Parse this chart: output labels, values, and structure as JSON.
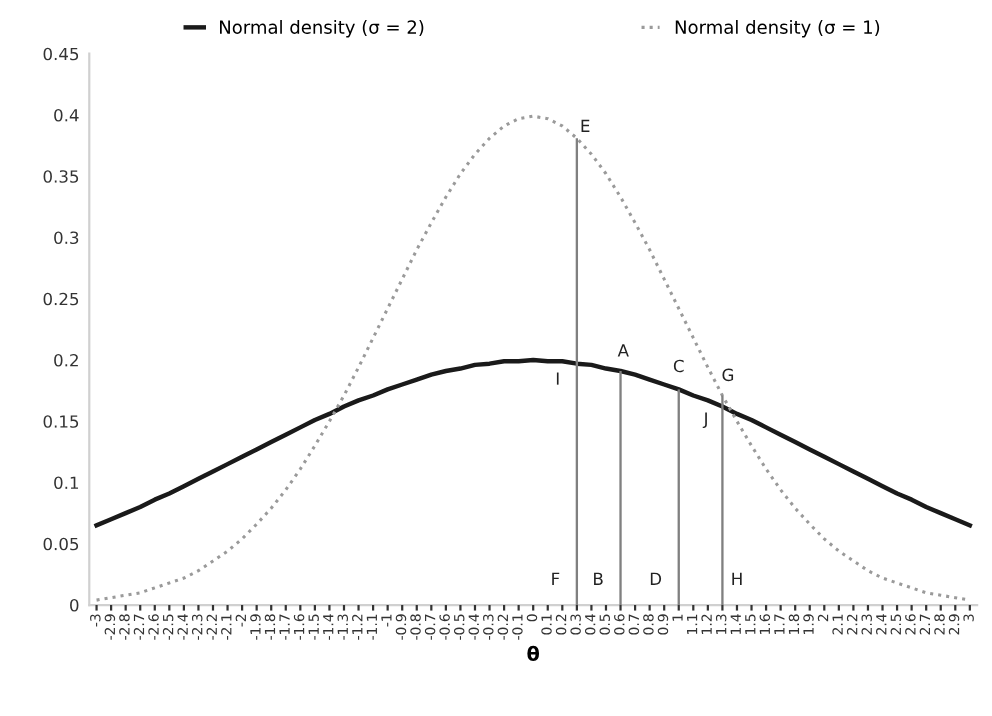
{
  "chart_data": {
    "type": "line",
    "xlabel": "θ",
    "legend": "top",
    "categories": [
      "-3",
      "-2.9",
      "-2.8",
      "-2.7",
      "-2.6",
      "-2.5",
      "-2.4",
      "-2.3",
      "-2.2",
      "-2.1",
      "-2",
      "-1.9",
      "-1.8",
      "-1.7",
      "-1.6",
      "-1.5",
      "-1.4",
      "-1.3",
      "-1.2",
      "-1.1",
      "-1",
      "-0.9",
      "-0.8",
      "-0.7",
      "-0.6",
      "-0.5",
      "-0.4",
      "-0.3",
      "-0.2",
      "-0.1",
      "0",
      "0.1",
      "0.2",
      "0.3",
      "0.4",
      "0.5",
      "0.6",
      "0.7",
      "0.8",
      "0.9",
      "1",
      "1.1",
      "1.2",
      "1.3",
      "1.4",
      "1.5",
      "1.6",
      "1.7",
      "1.8",
      "1.9",
      "2",
      "2.1",
      "2.2",
      "2.3",
      "2.4",
      "2.5",
      "2.6",
      "2.7",
      "2.8",
      "2.9",
      "3"
    ],
    "series": [
      {
        "name": "Normal density (σ = 2)",
        "color": "#1a1a1a",
        "line_style": "solid",
        "values": [
          0.065,
          0.07,
          0.075,
          0.08,
          0.086,
          0.091,
          0.097,
          0.103,
          0.109,
          0.115,
          0.121,
          0.127,
          0.133,
          0.139,
          0.145,
          0.151,
          0.156,
          0.162,
          0.167,
          0.171,
          0.176,
          0.18,
          0.184,
          0.188,
          0.191,
          0.193,
          0.196,
          0.197,
          0.199,
          0.199,
          0.2,
          0.199,
          0.199,
          0.197,
          0.196,
          0.193,
          0.191,
          0.188,
          0.184,
          0.18,
          0.176,
          0.171,
          0.167,
          0.162,
          0.156,
          0.151,
          0.145,
          0.139,
          0.133,
          0.127,
          0.121,
          0.115,
          0.109,
          0.103,
          0.097,
          0.091,
          0.086,
          0.08,
          0.075,
          0.07,
          0.065
        ]
      },
      {
        "name": "Normal density (σ = 1)",
        "color": "#9a9a9a",
        "line_style": "dotted",
        "values": [
          0.004,
          0.006,
          0.008,
          0.01,
          0.014,
          0.018,
          0.022,
          0.028,
          0.036,
          0.044,
          0.054,
          0.066,
          0.079,
          0.094,
          0.111,
          0.13,
          0.15,
          0.171,
          0.194,
          0.218,
          0.242,
          0.266,
          0.29,
          0.312,
          0.333,
          0.352,
          0.368,
          0.381,
          0.391,
          0.397,
          0.399,
          0.397,
          0.391,
          0.381,
          0.368,
          0.352,
          0.333,
          0.312,
          0.29,
          0.266,
          0.242,
          0.218,
          0.194,
          0.171,
          0.15,
          0.13,
          0.111,
          0.094,
          0.079,
          0.066,
          0.054,
          0.044,
          0.036,
          0.028,
          0.022,
          0.018,
          0.014,
          0.01,
          0.008,
          0.006,
          0.004
        ]
      },
      {
        "type": "bar",
        "color": "#808080",
        "x": [
          "0.3",
          "0.6",
          "1",
          "1.3"
        ],
        "values": [
          0.381,
          0.191,
          0.176,
          0.171
        ]
      }
    ],
    "ylim": [
      0,
      0.45
    ],
    "yticks": [
      0,
      0.05,
      0.1,
      0.15,
      0.2,
      0.25,
      0.3,
      0.35,
      0.4,
      0.45
    ],
    "annotations": [
      {
        "text": "E",
        "x": "0.3",
        "y": 0.381
      },
      {
        "text": "I",
        "x": "0.3",
        "y": 0.197
      },
      {
        "text": "A",
        "x": "0.6",
        "y": 0.191
      },
      {
        "text": "C",
        "x": "1",
        "y": 0.176
      },
      {
        "text": "G",
        "x": "1.3",
        "y": 0.171
      },
      {
        "text": "J",
        "x": "1.3",
        "y": 0.162
      },
      {
        "text": "F",
        "x": "0.3",
        "y": 0
      },
      {
        "text": "B",
        "x": "0.6",
        "y": 0
      },
      {
        "text": "D",
        "x": "1",
        "y": 0
      },
      {
        "text": "H",
        "x": "1.3",
        "y": 0
      }
    ]
  }
}
